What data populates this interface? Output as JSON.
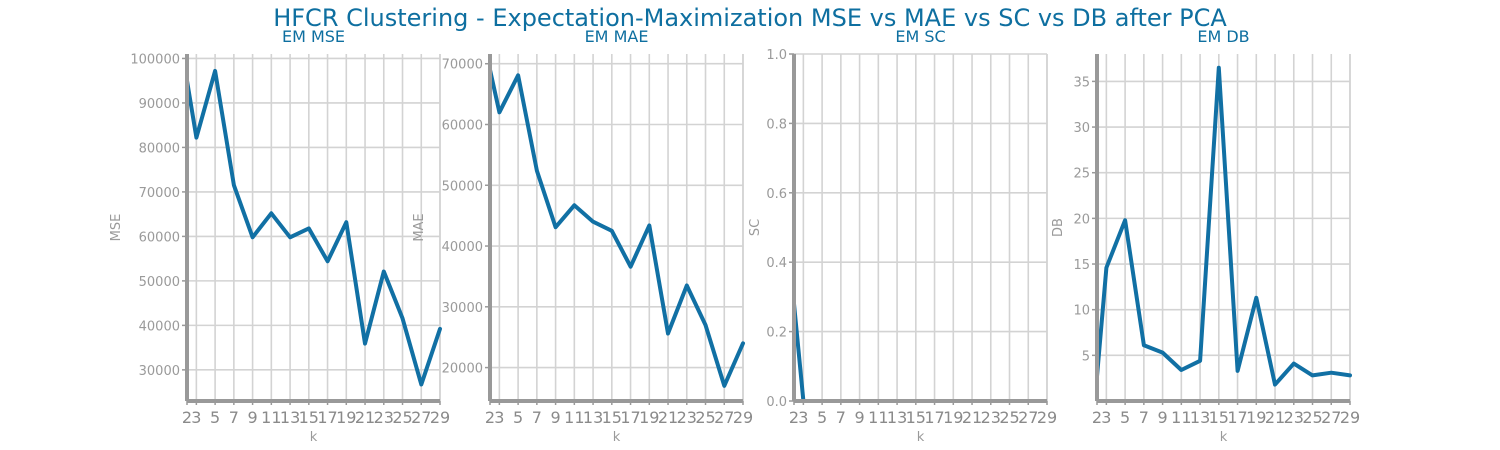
{
  "title": "HFCR Clustering - Expectation-Maximization MSE vs MAE vs SC vs DB after PCA",
  "colors": {
    "line": "#1170a4",
    "grid": "#d3d3d3",
    "axis": "#999999",
    "title": "#0e6fa0"
  },
  "chart_data": [
    {
      "type": "line",
      "title": "EM MSE",
      "xlabel": "k",
      "ylabel": "MSE",
      "x": [
        2,
        3,
        5,
        7,
        9,
        11,
        13,
        15,
        17,
        19,
        21,
        23,
        25,
        27,
        29
      ],
      "x_tick_labels": [
        "2",
        "3",
        "5",
        "7",
        "9",
        "11",
        "13",
        "15",
        "17",
        "19",
        "21",
        "23",
        "25",
        "27",
        "29"
      ],
      "xlim": [
        2,
        29
      ],
      "values": [
        95000,
        82200,
        97200,
        71500,
        59800,
        65200,
        59800,
        61800,
        54400,
        63200,
        35900,
        52100,
        41600,
        26700,
        39200
      ],
      "ylim": [
        23000,
        101000
      ],
      "y_ticks": [
        30000,
        40000,
        50000,
        60000,
        70000,
        80000,
        90000,
        100000
      ],
      "y_tick_labels": [
        "30000",
        "40000",
        "50000",
        "60000",
        "70000",
        "80000",
        "90000",
        "100000"
      ],
      "grid": true
    },
    {
      "type": "line",
      "title": "EM MAE",
      "xlabel": "k",
      "ylabel": "MAE",
      "x": [
        2,
        3,
        5,
        7,
        9,
        11,
        13,
        15,
        17,
        19,
        21,
        23,
        25,
        27,
        29
      ],
      "x_tick_labels": [
        "2",
        "3",
        "5",
        "7",
        "9",
        "11",
        "13",
        "15",
        "17",
        "19",
        "21",
        "23",
        "25",
        "27",
        "29"
      ],
      "xlim": [
        2,
        29
      ],
      "values": [
        69000,
        62000,
        68100,
        52400,
        43100,
        46700,
        44000,
        42500,
        36600,
        43400,
        25600,
        33500,
        27000,
        17000,
        24000
      ],
      "ylim": [
        14500,
        71600
      ],
      "y_ticks": [
        20000,
        30000,
        40000,
        50000,
        60000,
        70000
      ],
      "y_tick_labels": [
        "20000",
        "30000",
        "40000",
        "50000",
        "60000",
        "70000"
      ],
      "grid": true
    },
    {
      "type": "line",
      "title": "EM SC",
      "xlabel": "k",
      "ylabel": "SC",
      "x": [
        2,
        3
      ],
      "x_ticks": [
        2,
        3,
        5,
        7,
        9,
        11,
        13,
        15,
        17,
        19,
        21,
        23,
        25,
        27,
        29
      ],
      "x_tick_labels": [
        "2",
        "3",
        "5",
        "7",
        "9",
        "11",
        "13",
        "15",
        "17",
        "19",
        "21",
        "23",
        "25",
        "27",
        "29"
      ],
      "xlim": [
        2,
        29
      ],
      "values": [
        0.28,
        0.0
      ],
      "ylim": [
        0,
        1.0
      ],
      "y_ticks": [
        0.0,
        0.2,
        0.4,
        0.6,
        0.8,
        1.0
      ],
      "y_tick_labels": [
        "0.0",
        "0.2",
        "0.4",
        "0.6",
        "0.8",
        "1.0"
      ],
      "grid": true
    },
    {
      "type": "line",
      "title": "EM DB",
      "xlabel": "k",
      "ylabel": "DB",
      "x": [
        2,
        3,
        5,
        7,
        9,
        11,
        13,
        15,
        17,
        19,
        21,
        23,
        25,
        27,
        29
      ],
      "x_tick_labels": [
        "2",
        "3",
        "5",
        "7",
        "9",
        "11",
        "13",
        "15",
        "17",
        "19",
        "21",
        "23",
        "25",
        "27",
        "29"
      ],
      "xlim": [
        2,
        29
      ],
      "values": [
        2.7,
        14.6,
        19.8,
        6.1,
        5.3,
        3.4,
        4.4,
        36.5,
        3.3,
        11.3,
        1.8,
        4.1,
        2.8,
        3.1,
        2.8
      ],
      "ylim": [
        0,
        38
      ],
      "y_ticks": [
        5,
        10,
        15,
        20,
        25,
        30,
        35
      ],
      "y_tick_labels": [
        "5",
        "10",
        "15",
        "20",
        "25",
        "30",
        "35"
      ],
      "grid": true
    }
  ]
}
